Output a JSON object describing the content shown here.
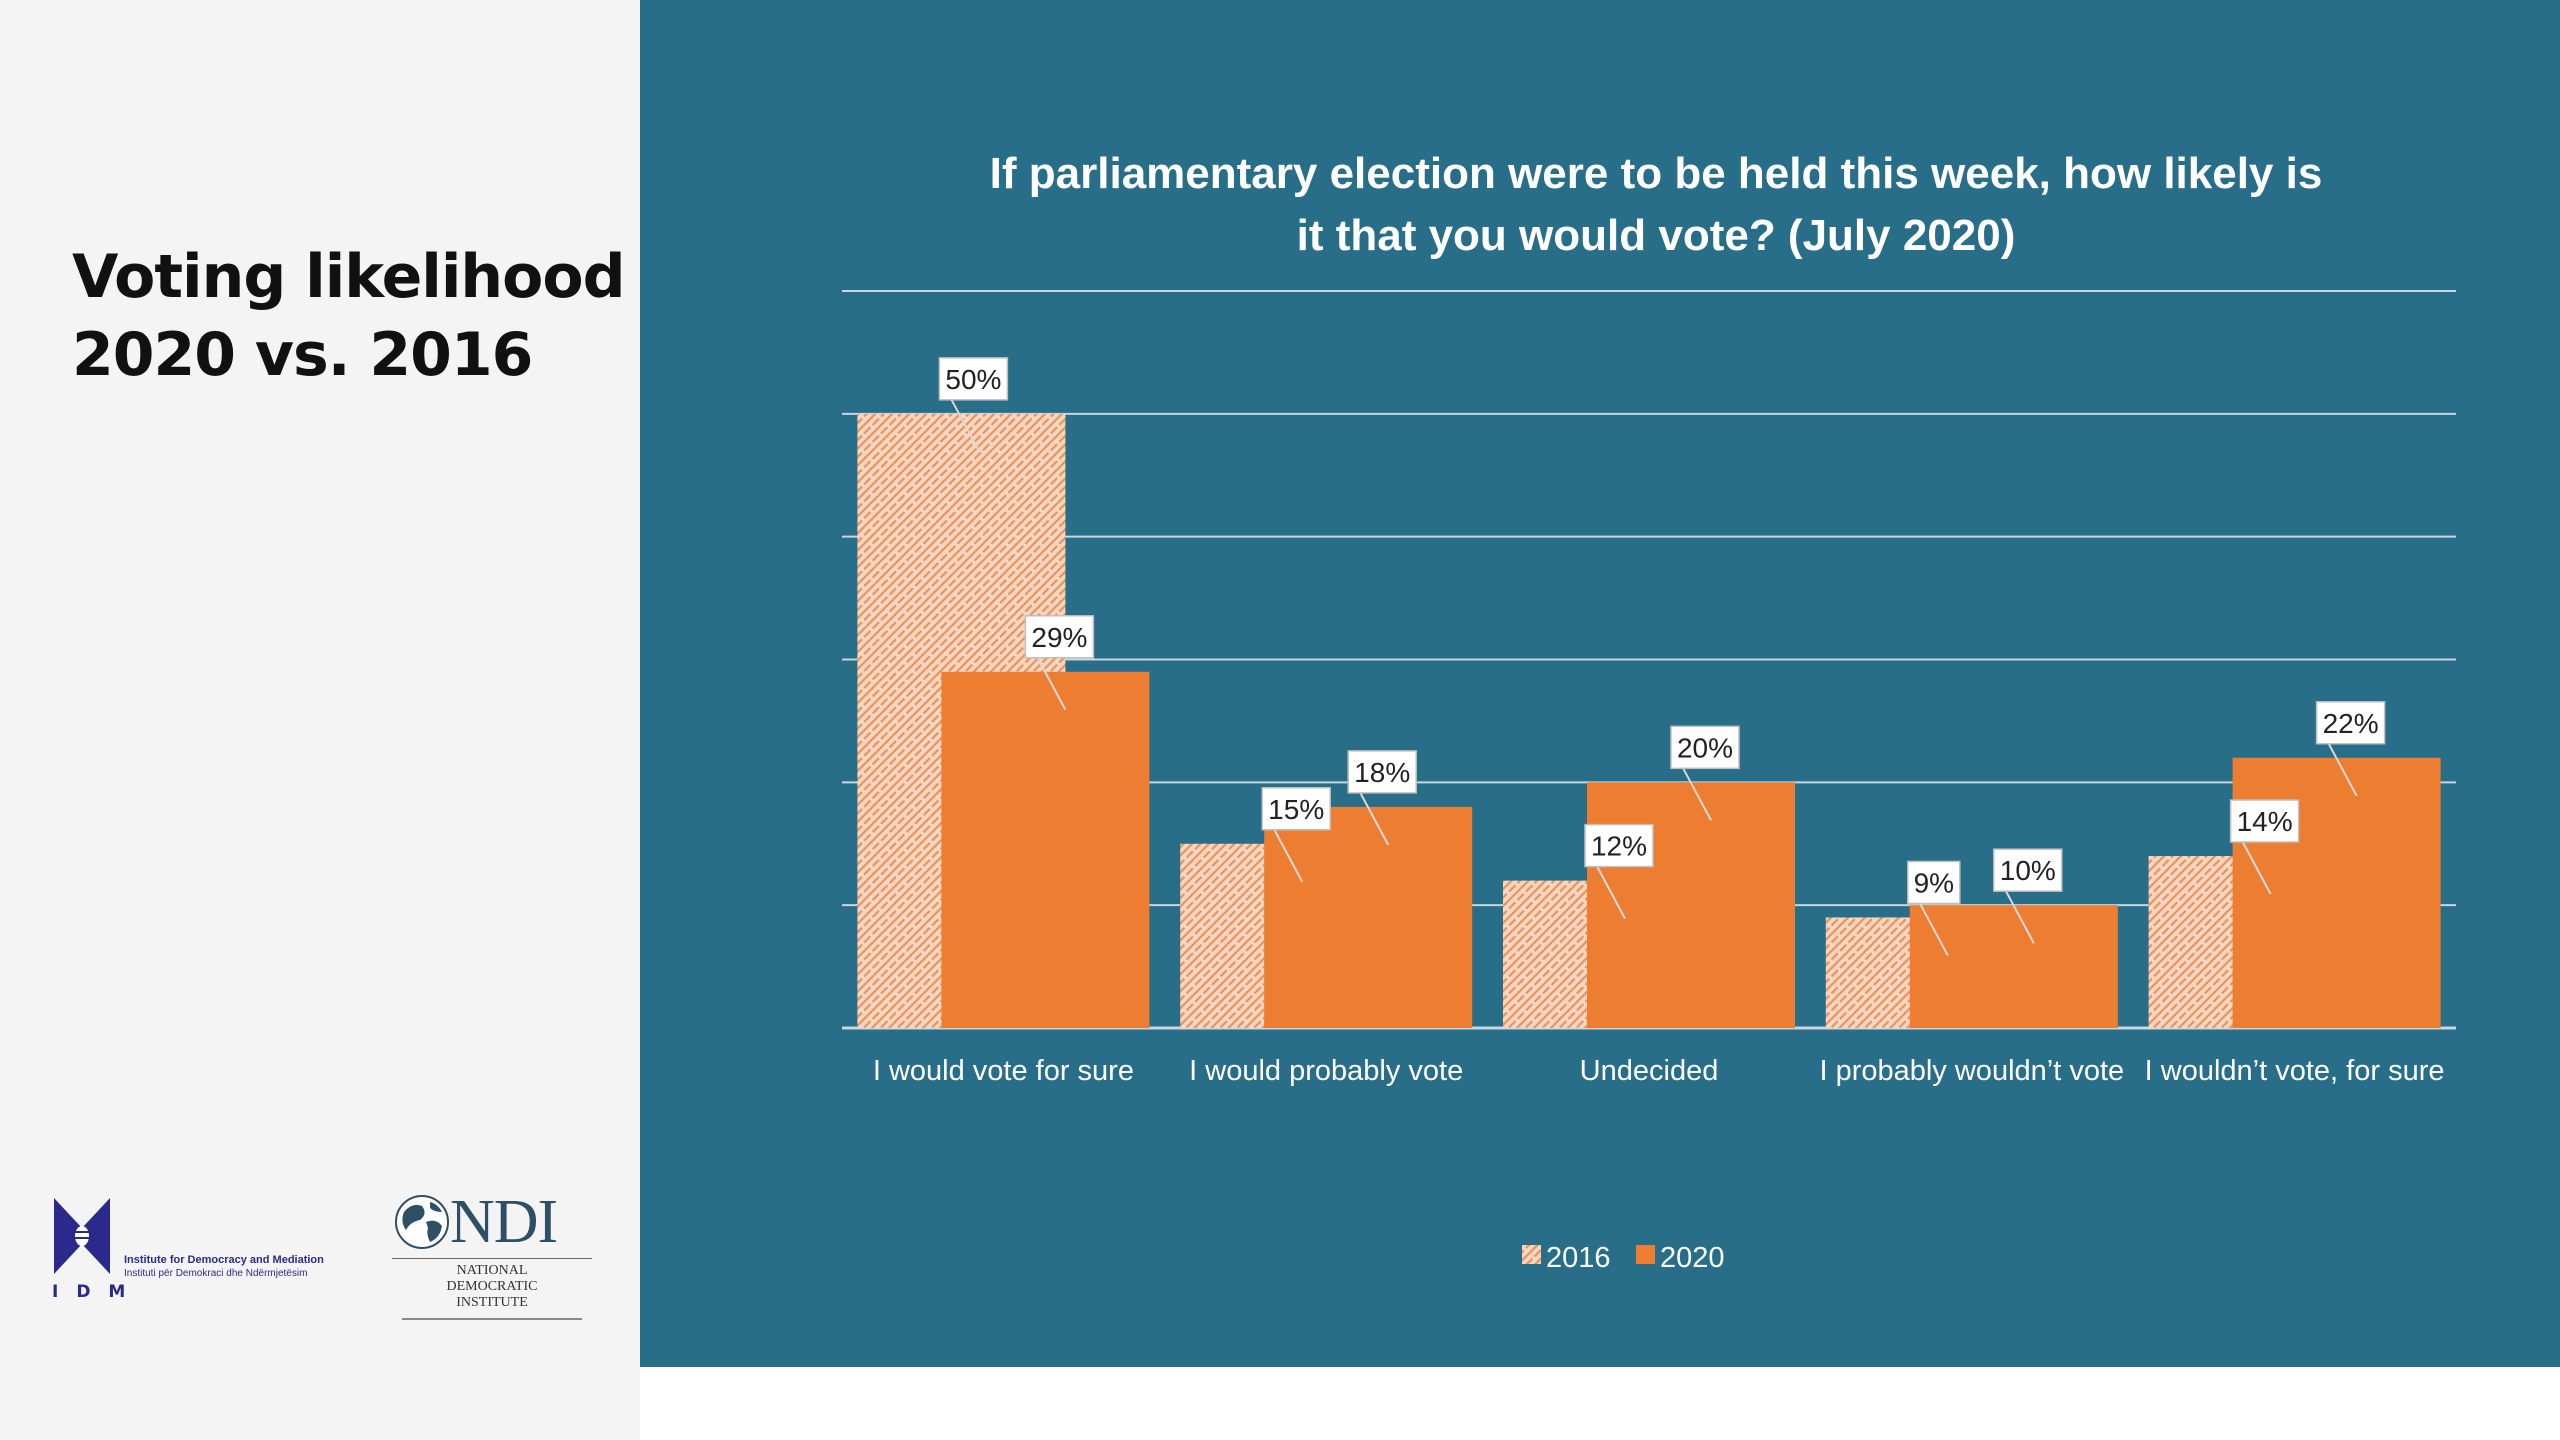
{
  "slide": {
    "title_line1": "Voting likelihood",
    "title_line2": "2020 vs. 2016"
  },
  "colors": {
    "panel_bg": "#286e89",
    "series_2016": "#f7d7c4",
    "series_2016_pattern": "#e9935a",
    "series_2020": "#ed7d31",
    "gridline": "#c9d6de"
  },
  "logos": {
    "idm": {
      "letters": "IDM",
      "name_en": "Institute for Democracy and Mediation",
      "name_sq": "Instituti për Demokraci dhe Ndërmjetësim"
    },
    "ndi": {
      "wordmark": "NDI",
      "line1": "NATIONAL",
      "line2": "DEMOCRATIC",
      "line3": "INSTITUTE"
    }
  },
  "chart_data": {
    "type": "bar",
    "title_line1": "If parliamentary election were to be held this week, how likely is",
    "title_line2": "it that you would vote? (July 2020)",
    "categories": [
      "I would vote for sure",
      "I would probably vote",
      "Undecided",
      "I probably wouldn’t vote",
      "I wouldn’t vote, for sure"
    ],
    "series": [
      {
        "name": "2016",
        "values": [
          50,
          15,
          12,
          9,
          14
        ],
        "labels": [
          "50%",
          "15%",
          "12%",
          "9%",
          "14%"
        ]
      },
      {
        "name": "2020",
        "values": [
          29,
          18,
          20,
          10,
          22
        ],
        "labels": [
          "29%",
          "18%",
          "20%",
          "10%",
          "22%"
        ]
      }
    ],
    "ylim": [
      0,
      60
    ],
    "y_tick_step": 10,
    "grid": true,
    "legend_position": "bottom-center",
    "data_labels": true
  }
}
